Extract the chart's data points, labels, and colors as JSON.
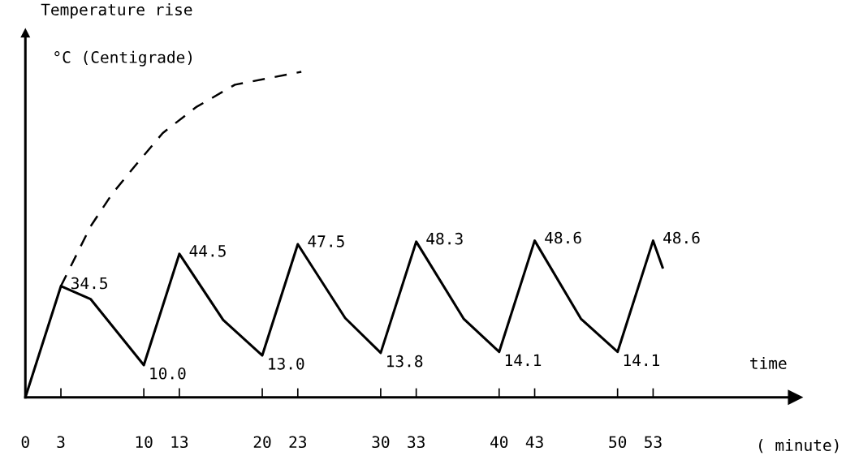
{
  "chart_data": {
    "type": "line",
    "ylabel": "Temperature rise",
    "xlabel": "( minute)",
    "annotations": [
      "°C (Centigrade)",
      "time"
    ],
    "xlim": [
      0,
      65
    ],
    "ylim": [
      0,
      113
    ],
    "xticks": [
      0,
      3,
      10,
      13,
      20,
      23,
      30,
      33,
      40,
      43,
      50,
      53
    ],
    "tick_labels": "x",
    "grid": false,
    "legend": false,
    "series": [
      {
        "color": "#000000",
        "line_style": "solid",
        "x": [
          0,
          3,
          5.5,
          10,
          13,
          16.7,
          20,
          23,
          27,
          30,
          33,
          37,
          40,
          43,
          46.9,
          50,
          53,
          53.8
        ],
        "values": [
          0,
          34.5,
          30.5,
          10.0,
          44.5,
          24,
          13.0,
          47.5,
          24.6,
          13.8,
          48.3,
          24.4,
          14.1,
          48.6,
          24.4,
          14.1,
          48.6,
          40.3
        ],
        "value_labels": [
          null,
          "34.5",
          null,
          "10.0",
          "44.5",
          null,
          "13.0",
          "47.5",
          null,
          "13.8",
          "48.3",
          null,
          "14.1",
          "48.6",
          null,
          "14.1",
          "48.6",
          null
        ]
      },
      {
        "color": "#000000",
        "line_style": "dashed",
        "x": [
          3,
          5.5,
          7.3,
          9.3,
          11.6,
          14.4,
          17.7,
          23.3
        ],
        "values": [
          34.5,
          53,
          63,
          72,
          82,
          90,
          97,
          101
        ]
      }
    ]
  }
}
